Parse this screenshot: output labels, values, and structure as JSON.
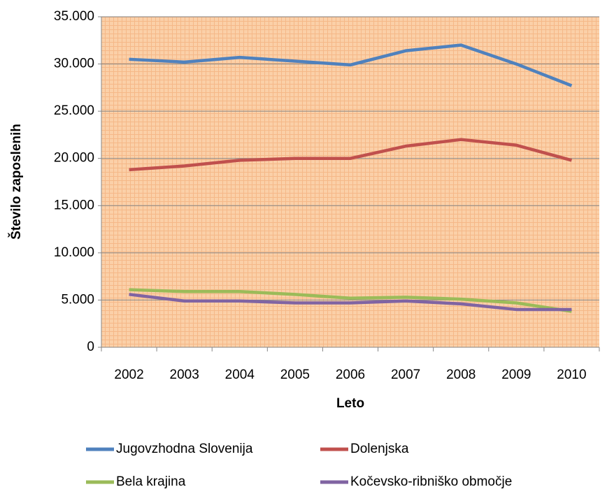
{
  "chart_data": {
    "type": "line",
    "x_label": "Leto",
    "y_label": "Število zaposlenih",
    "categories": [
      "2002",
      "2003",
      "2004",
      "2005",
      "2006",
      "2007",
      "2008",
      "2009",
      "2010"
    ],
    "ylim": [
      0,
      35000
    ],
    "yticks": [
      0,
      {
        "value": 5000,
        "label": "5.000"
      },
      {
        "value": 10000,
        "label": "10.000"
      },
      {
        "value": 15000,
        "label": "15.000"
      },
      {
        "value": 20000,
        "label": "20.000"
      },
      {
        "value": 25000,
        "label": "25.000"
      },
      {
        "value": 30000,
        "label": "30.000"
      },
      {
        "value": 35000,
        "label": "35.000"
      }
    ],
    "grid": true,
    "legend": "bottom",
    "series": [
      {
        "name": "Jugovzhodna Slovenija",
        "color": "#4f81bd",
        "values": [
          30500,
          30200,
          30700,
          30300,
          29900,
          31400,
          32000,
          30000,
          27700
        ]
      },
      {
        "name": "Dolenjska",
        "color": "#c0504d",
        "values": [
          18800,
          19200,
          19800,
          20000,
          20000,
          21300,
          22000,
          21400,
          19800
        ]
      },
      {
        "name": "Bela krajina",
        "color": "#9bbb59",
        "values": [
          6100,
          5900,
          5900,
          5600,
          5200,
          5300,
          5100,
          4700,
          3800
        ]
      },
      {
        "name": "Kočevsko-ribniško območje",
        "color": "#8064a2",
        "values": [
          5600,
          4900,
          4900,
          4700,
          4700,
          4900,
          4600,
          4000,
          4000
        ]
      }
    ]
  }
}
